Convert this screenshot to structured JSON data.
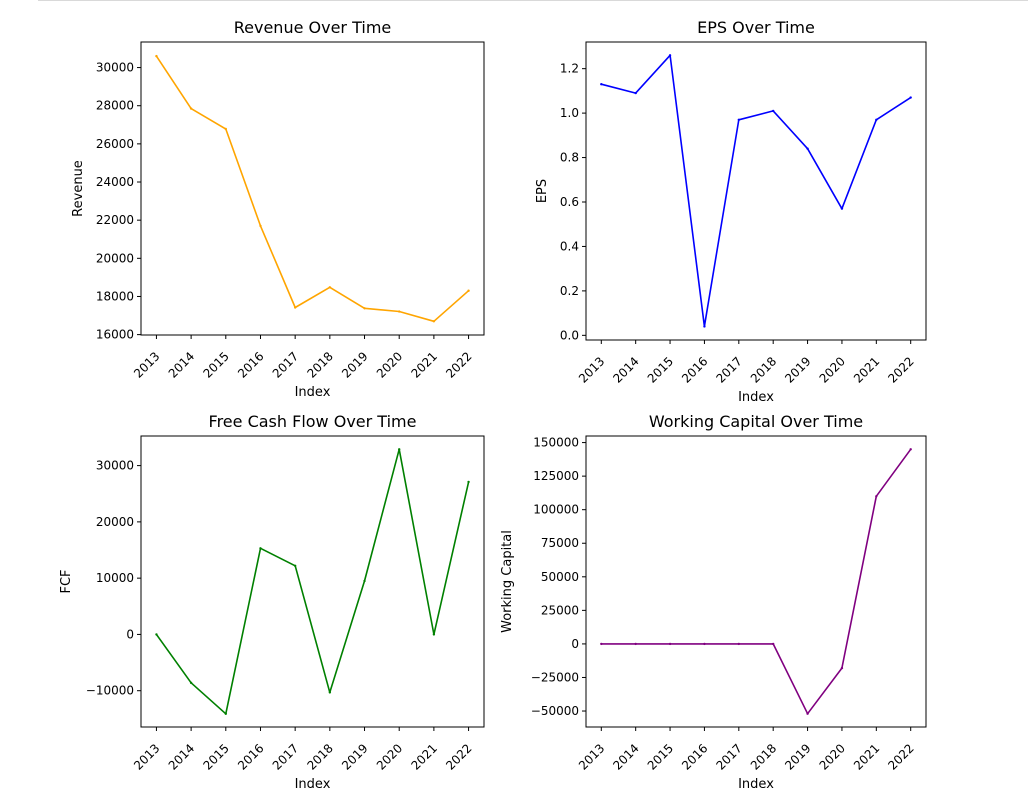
{
  "chart_data": [
    {
      "type": "line",
      "title": "Revenue Over Time",
      "xlabel": "Index",
      "ylabel": "Revenue",
      "color": "#ffa500",
      "x": [
        "2013",
        "2014",
        "2015",
        "2016",
        "2017",
        "2018",
        "2019",
        "2020",
        "2021",
        "2022"
      ],
      "values": [
        30600,
        27850,
        26780,
        21700,
        17420,
        18480,
        17380,
        17210,
        16700,
        18300
      ],
      "ylim": [
        15980,
        31340
      ],
      "yticks": [
        16000,
        18000,
        20000,
        22000,
        24000,
        26000,
        28000,
        30000
      ],
      "ytick_labels": [
        "16000",
        "18000",
        "20000",
        "22000",
        "24000",
        "26000",
        "28000",
        "30000"
      ],
      "grid": false
    },
    {
      "type": "line",
      "title": "EPS Over Time",
      "xlabel": "Index",
      "ylabel": "EPS",
      "color": "#0000ff",
      "x": [
        "2013",
        "2014",
        "2015",
        "2016",
        "2017",
        "2018",
        "2019",
        "2020",
        "2021",
        "2022"
      ],
      "values": [
        1.13,
        1.09,
        1.26,
        0.04,
        0.97,
        1.01,
        0.84,
        0.57,
        0.97,
        1.07
      ],
      "ylim": [
        -0.021,
        1.32
      ],
      "yticks": [
        0,
        0.2,
        0.4,
        0.6,
        0.8,
        1.0,
        1.2
      ],
      "ytick_labels": [
        "0.0",
        "0.2",
        "0.4",
        "0.6",
        "0.8",
        "1.0",
        "1.2"
      ],
      "grid": false
    },
    {
      "type": "line",
      "title": "Free Cash Flow Over Time",
      "xlabel": "Index",
      "ylabel": "FCF",
      "color": "#008000",
      "x": [
        "2013",
        "2014",
        "2015",
        "2016",
        "2017",
        "2018",
        "2019",
        "2020",
        "2021",
        "2022"
      ],
      "values": [
        0,
        -8600,
        -14100,
        15300,
        12200,
        -10300,
        9500,
        32900,
        0,
        27100
      ],
      "ylim": [
        -16450,
        35260
      ],
      "yticks": [
        -10000,
        0,
        10000,
        20000,
        30000
      ],
      "ytick_labels": [
        "−10000",
        "0",
        "10000",
        "20000",
        "30000"
      ],
      "grid": false
    },
    {
      "type": "line",
      "title": "Working Capital Over Time",
      "xlabel": "Index",
      "ylabel": "Working Capital",
      "color": "#800080",
      "x": [
        "2013",
        "2014",
        "2015",
        "2016",
        "2017",
        "2018",
        "2019",
        "2020",
        "2021",
        "2022"
      ],
      "values": [
        0,
        0,
        0,
        0,
        0,
        0,
        -52000,
        -18000,
        110000,
        145000
      ],
      "ylim": [
        -61900,
        154900
      ],
      "yticks": [
        -50000,
        -25000,
        0,
        25000,
        50000,
        75000,
        100000,
        125000,
        150000
      ],
      "ytick_labels": [
        "−50000",
        "−25000",
        "0",
        "25000",
        "50000",
        "75000",
        "100000",
        "125000",
        "150000"
      ],
      "grid": false
    }
  ]
}
